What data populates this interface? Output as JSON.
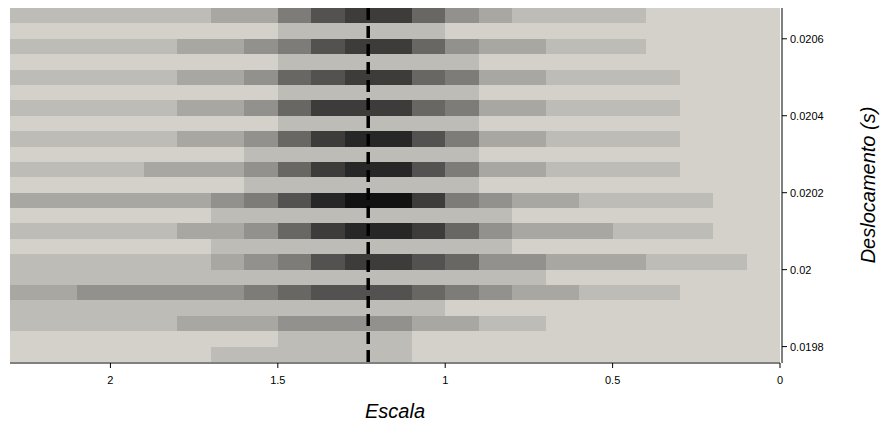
{
  "chart_data": {
    "type": "heatmap",
    "x_label": "Escala",
    "y_label": "Deslocamento (s)",
    "xlim": [
      2.3,
      0
    ],
    "ylim": [
      0.01976,
      0.02068
    ],
    "xticks": [
      2,
      1.5,
      1,
      0.5,
      0
    ],
    "yticks": [
      0.0198,
      0.02,
      0.0202,
      0.0204,
      0.0206
    ],
    "zlim": [
      0,
      9
    ],
    "x_bins": [
      2.3,
      2.2,
      2.1,
      2.0,
      1.9,
      1.8,
      1.7,
      1.6,
      1.5,
      1.4,
      1.3,
      1.2,
      1.1,
      1.0,
      0.9,
      0.8,
      0.7,
      0.6,
      0.5,
      0.4,
      0.3,
      0.2,
      0.1,
      0
    ],
    "y_bins": [
      0.02068,
      0.02064,
      0.0206,
      0.02056,
      0.02052,
      0.02048,
      0.02044,
      0.0204,
      0.02036,
      0.02032,
      0.02028,
      0.02024,
      0.0202,
      0.02016,
      0.02012,
      0.02008,
      0.02004,
      0.02,
      0.01996,
      0.01992,
      0.01988,
      0.01984,
      0.0198,
      0.01976
    ],
    "values": [
      [
        1,
        1,
        1,
        1,
        1,
        1,
        2,
        2,
        4,
        6,
        7,
        7,
        5,
        3,
        2,
        1,
        1,
        1,
        1,
        0,
        0,
        0,
        0
      ],
      [
        0,
        0,
        0,
        0,
        0,
        0,
        0,
        0,
        1,
        1,
        1,
        1,
        1,
        0,
        0,
        0,
        0,
        0,
        0,
        0,
        0,
        0,
        0
      ],
      [
        1,
        1,
        1,
        1,
        1,
        2,
        2,
        3,
        4,
        6,
        7,
        7,
        5,
        3,
        2,
        2,
        1,
        1,
        1,
        0,
        0,
        0,
        0
      ],
      [
        0,
        0,
        0,
        0,
        0,
        0,
        0,
        0,
        1,
        1,
        1,
        1,
        1,
        1,
        0,
        0,
        0,
        0,
        0,
        0,
        0,
        0,
        0
      ],
      [
        1,
        1,
        1,
        1,
        1,
        2,
        2,
        3,
        5,
        6,
        7,
        7,
        5,
        4,
        2,
        2,
        1,
        1,
        1,
        1,
        0,
        0,
        0
      ],
      [
        0,
        0,
        0,
        0,
        0,
        0,
        0,
        0,
        1,
        1,
        1,
        1,
        1,
        1,
        0,
        0,
        0,
        0,
        0,
        0,
        0,
        0,
        0
      ],
      [
        1,
        1,
        1,
        1,
        1,
        2,
        2,
        3,
        5,
        7,
        7,
        7,
        5,
        4,
        2,
        2,
        1,
        1,
        1,
        1,
        0,
        0,
        0
      ],
      [
        0,
        0,
        0,
        0,
        0,
        0,
        0,
        0,
        1,
        1,
        1,
        1,
        1,
        1,
        0,
        0,
        0,
        0,
        0,
        0,
        0,
        0,
        0
      ],
      [
        1,
        1,
        1,
        1,
        1,
        2,
        2,
        3,
        5,
        7,
        8,
        8,
        6,
        4,
        2,
        2,
        1,
        1,
        1,
        1,
        0,
        0,
        0
      ],
      [
        0,
        0,
        0,
        0,
        0,
        0,
        0,
        1,
        1,
        1,
        1,
        1,
        1,
        1,
        0,
        0,
        0,
        0,
        0,
        0,
        0,
        0,
        0
      ],
      [
        1,
        1,
        1,
        1,
        2,
        2,
        2,
        3,
        5,
        7,
        8,
        8,
        6,
        4,
        2,
        2,
        1,
        1,
        1,
        1,
        0,
        0,
        0
      ],
      [
        0,
        0,
        0,
        0,
        0,
        0,
        0,
        1,
        1,
        1,
        1,
        1,
        1,
        1,
        0,
        0,
        0,
        0,
        0,
        0,
        0,
        0,
        0
      ],
      [
        2,
        2,
        2,
        2,
        2,
        2,
        3,
        4,
        6,
        8,
        9,
        9,
        7,
        4,
        3,
        2,
        2,
        1,
        1,
        1,
        1,
        0,
        0
      ],
      [
        0,
        0,
        0,
        0,
        0,
        0,
        1,
        1,
        1,
        1,
        1,
        1,
        1,
        1,
        1,
        0,
        0,
        0,
        0,
        0,
        0,
        0,
        0
      ],
      [
        1,
        1,
        1,
        1,
        1,
        2,
        2,
        3,
        5,
        7,
        8,
        8,
        7,
        5,
        3,
        2,
        2,
        2,
        1,
        1,
        1,
        0,
        0
      ],
      [
        0,
        0,
        0,
        0,
        0,
        0,
        1,
        1,
        1,
        1,
        1,
        1,
        1,
        1,
        1,
        0,
        0,
        0,
        0,
        0,
        0,
        0,
        0
      ],
      [
        1,
        1,
        1,
        1,
        1,
        1,
        2,
        3,
        4,
        6,
        7,
        7,
        6,
        5,
        3,
        3,
        2,
        2,
        2,
        1,
        1,
        1,
        0
      ],
      [
        1,
        1,
        1,
        1,
        1,
        1,
        1,
        1,
        1,
        1,
        1,
        1,
        1,
        1,
        1,
        1,
        0,
        0,
        0,
        0,
        0,
        0,
        0
      ],
      [
        2,
        2,
        3,
        3,
        3,
        3,
        3,
        4,
        5,
        6,
        6,
        6,
        5,
        4,
        3,
        2,
        2,
        1,
        1,
        1,
        0,
        0,
        0
      ],
      [
        1,
        1,
        1,
        1,
        1,
        1,
        1,
        1,
        1,
        1,
        1,
        1,
        1,
        0,
        0,
        0,
        0,
        0,
        0,
        0,
        0,
        0,
        0
      ],
      [
        1,
        1,
        1,
        1,
        1,
        2,
        2,
        2,
        3,
        3,
        3,
        3,
        2,
        2,
        1,
        1,
        0,
        0,
        0,
        0,
        0,
        0,
        0
      ],
      [
        0,
        0,
        0,
        0,
        0,
        0,
        0,
        0,
        1,
        1,
        1,
        1,
        0,
        0,
        0,
        0,
        0,
        0,
        0,
        0,
        0,
        0,
        0
      ],
      [
        0,
        0,
        0,
        0,
        0,
        0,
        1,
        1,
        1,
        1,
        1,
        1,
        0,
        0,
        0,
        0,
        0,
        0,
        0,
        0,
        0,
        0,
        0
      ]
    ],
    "reference_line": {
      "x": 1.23,
      "color": "#000000",
      "line_style": "dashed"
    }
  }
}
